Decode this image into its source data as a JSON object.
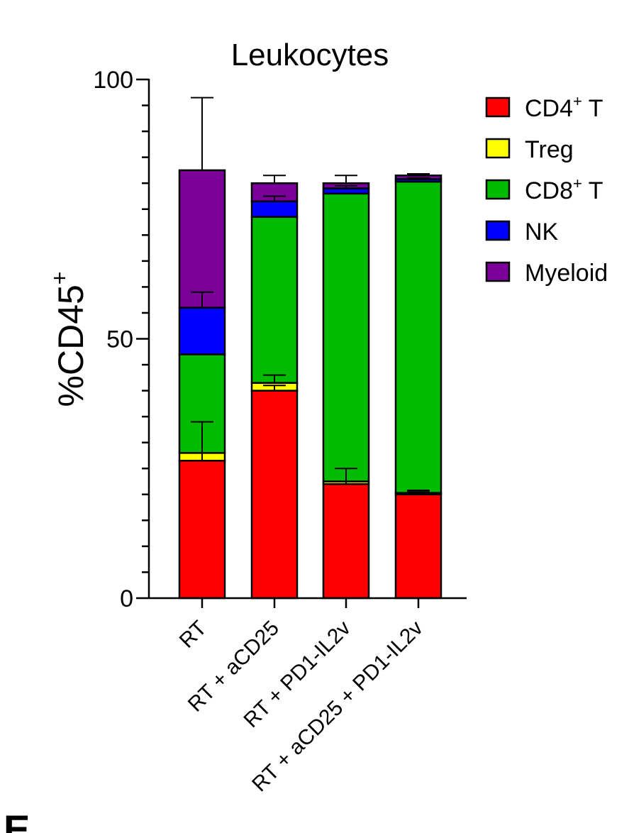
{
  "panel_letter": "E",
  "chart_data": {
    "type": "bar",
    "stacked": true,
    "title": "Leukocytes",
    "ylabel": "%CD45",
    "ylabel_superscript": "+",
    "xlabel": "",
    "ylim": [
      0,
      100
    ],
    "yticks": [
      0,
      50,
      100
    ],
    "categories": [
      "RT",
      "RT + aCD25",
      "RT + PD1-IL2v",
      "RT + aCD25 + PD1-IL2v"
    ],
    "legend_position": "right",
    "series": [
      {
        "name": "CD4",
        "name_superscript": "+",
        "name_suffix": " T",
        "color": "#ff0000",
        "values": [
          26.5,
          40,
          22,
          20
        ],
        "errors": [
          1.5,
          1,
          0.5,
          0.5
        ]
      },
      {
        "name": "Treg",
        "color": "#ffff00",
        "values": [
          1.5,
          1.5,
          0.5,
          0.3
        ],
        "errors": [
          6,
          1.5,
          2.5,
          0.5
        ]
      },
      {
        "name": "CD8",
        "name_superscript": "+",
        "name_suffix": " T",
        "color": "#00bb00",
        "values": [
          19,
          32,
          55.5,
          60
        ],
        "errors": [
          0,
          0,
          0,
          0
        ]
      },
      {
        "name": "NK",
        "color": "#0000ff",
        "values": [
          9,
          3,
          1,
          0.5
        ],
        "errors": [
          3,
          1,
          0.5,
          0.2
        ]
      },
      {
        "name": "Myeloid",
        "color": "#7a0099",
        "values": [
          26.5,
          3.5,
          1,
          0.7
        ],
        "errors": [
          14,
          1.5,
          1.5,
          0.3
        ]
      }
    ]
  }
}
